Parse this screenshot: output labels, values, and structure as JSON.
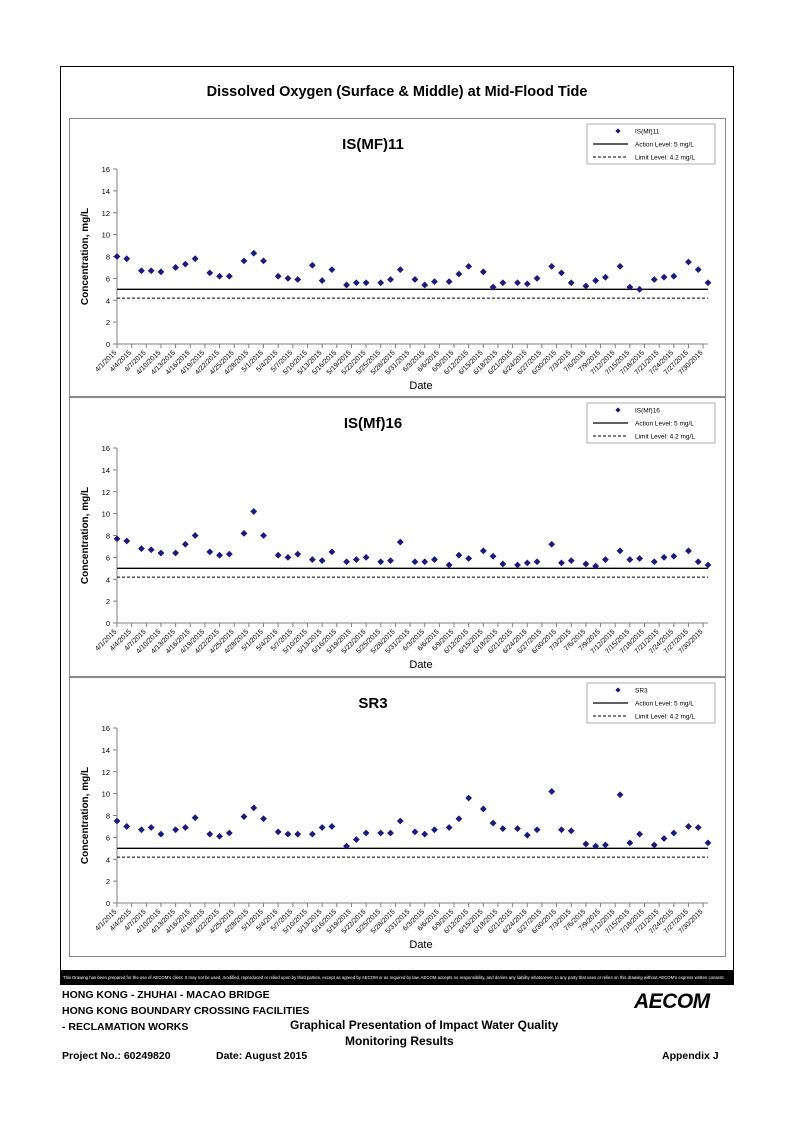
{
  "main_title": "Dissolved Oxygen (Surface & Middle) at Mid-Flood Tide",
  "notice": "This Drawing has been prepared for the use of AECOM's client. It may not be used, modified, reproduced or relied upon by third parties, except as agreed by AECOM or as required by law. AECOM accepts no responsibility, and denies any liability whatsoever, to any party that uses or relies on this drawing without AECOM's express written consent.",
  "footer": {
    "line1": "HONG KONG - ZHUHAI - MACAO BRIDGE",
    "line2": "HONG KONG BOUNDARY CROSSING FACILITIES",
    "line3": "- RECLAMATION WORKS",
    "center1": "Graphical Presentation of Impact Water Quality",
    "center2": "Monitoring Results",
    "project": "Project No.: 60249820",
    "date": "Date: August 2015",
    "appendix": "Appendix J",
    "logo": "AECOM"
  },
  "colors": {
    "marker": "#1a1a7a",
    "axis": "#808080",
    "line": "#000000"
  },
  "chart_data": [
    {
      "type": "scatter",
      "title": "IS(MF)11",
      "xlabel": "Date",
      "ylabel": "Concentration, mg/L",
      "ylim": [
        0,
        16
      ],
      "yticks": [
        0,
        2,
        4,
        6,
        8,
        10,
        12,
        14,
        16
      ],
      "xlim": [
        "4/1/2015",
        "7/31/2015"
      ],
      "xticks": [
        "4/1/2015",
        "4/4/2015",
        "4/7/2015",
        "4/10/2015",
        "4/13/2015",
        "4/16/2015",
        "4/19/2015",
        "4/22/2015",
        "4/25/2015",
        "4/28/2015",
        "5/1/2015",
        "5/4/2015",
        "5/7/2015",
        "5/10/2015",
        "5/13/2015",
        "5/16/2015",
        "5/19/2015",
        "5/22/2015",
        "5/25/2015",
        "5/28/2015",
        "5/31/2015",
        "6/3/2015",
        "6/6/2015",
        "6/9/2015",
        "6/12/2015",
        "6/15/2015",
        "6/18/2015",
        "6/21/2015",
        "6/24/2015",
        "6/27/2015",
        "6/30/2015",
        "7/3/2015",
        "7/6/2015",
        "7/9/2015",
        "7/12/2015",
        "7/15/2015",
        "7/18/2015",
        "7/21/2015",
        "7/24/2015",
        "7/27/2015",
        "7/30/2015"
      ],
      "legend": [
        "IS(Mf)11",
        "Action Level: 5 mg/L",
        "Limit Level: 4.2 mg/L"
      ],
      "legend_position": "top-right",
      "action_level": 5,
      "limit_level": 4.2,
      "series": [
        {
          "name": "IS(Mf)11",
          "x": [
            "4/1/2015",
            "4/3/2015",
            "4/6/2015",
            "4/8/2015",
            "4/10/2015",
            "4/13/2015",
            "4/15/2015",
            "4/17/2015",
            "4/20/2015",
            "4/22/2015",
            "4/24/2015",
            "4/27/2015",
            "4/29/2015",
            "5/1/2015",
            "5/4/2015",
            "5/6/2015",
            "5/8/2015",
            "5/11/2015",
            "5/13/2015",
            "5/15/2015",
            "5/18/2015",
            "5/20/2015",
            "5/22/2015",
            "5/25/2015",
            "5/27/2015",
            "5/29/2015",
            "6/1/2015",
            "6/3/2015",
            "6/5/2015",
            "6/8/2015",
            "6/10/2015",
            "6/12/2015",
            "6/15/2015",
            "6/17/2015",
            "6/19/2015",
            "6/22/2015",
            "6/24/2015",
            "6/26/2015",
            "6/29/2015",
            "7/1/2015",
            "7/3/2015",
            "7/6/2015",
            "7/8/2015",
            "7/10/2015",
            "7/13/2015",
            "7/15/2015",
            "7/17/2015",
            "7/20/2015",
            "7/22/2015",
            "7/24/2015",
            "7/27/2015",
            "7/29/2015",
            "7/31/2015"
          ],
          "values": [
            8.0,
            7.8,
            6.7,
            6.7,
            6.6,
            7.0,
            7.3,
            7.8,
            6.5,
            6.2,
            6.2,
            7.6,
            8.3,
            7.6,
            6.2,
            6.0,
            5.9,
            7.2,
            5.8,
            6.8,
            5.4,
            5.6,
            5.6,
            5.6,
            5.9,
            6.8,
            5.9,
            5.4,
            5.7,
            5.7,
            6.4,
            7.1,
            6.6,
            5.2,
            5.6,
            5.6,
            5.5,
            6.0,
            7.1,
            6.5,
            5.6,
            5.3,
            5.8,
            6.1,
            7.1,
            5.2,
            5.0,
            5.9,
            6.1,
            6.2,
            7.5,
            6.8,
            5.6
          ]
        }
      ]
    },
    {
      "type": "scatter",
      "title": "IS(Mf)16",
      "xlabel": "Date",
      "ylabel": "Concentration, mg/L",
      "ylim": [
        0,
        16
      ],
      "yticks": [
        0,
        2,
        4,
        6,
        8,
        10,
        12,
        14,
        16
      ],
      "xlim": [
        "4/1/2015",
        "7/31/2015"
      ],
      "xticks": [
        "4/1/2015",
        "4/4/2015",
        "4/7/2015",
        "4/10/2015",
        "4/13/2015",
        "4/16/2015",
        "4/19/2015",
        "4/22/2015",
        "4/25/2015",
        "4/28/2015",
        "5/1/2015",
        "5/4/2015",
        "5/7/2015",
        "5/10/2015",
        "5/13/2015",
        "5/16/2015",
        "5/19/2015",
        "5/22/2015",
        "5/25/2015",
        "5/28/2015",
        "5/31/2015",
        "6/3/2015",
        "6/6/2015",
        "6/9/2015",
        "6/12/2015",
        "6/15/2015",
        "6/18/2015",
        "6/21/2015",
        "6/24/2015",
        "6/27/2015",
        "6/30/2015",
        "7/3/2015",
        "7/6/2015",
        "7/9/2015",
        "7/12/2015",
        "7/15/2015",
        "7/18/2015",
        "7/21/2015",
        "7/24/2015",
        "7/27/2015",
        "7/30/2015"
      ],
      "legend": [
        "IS(Mf)16",
        "Action Level: 5 mg/L",
        "Limit Level: 4.2 mg/L"
      ],
      "legend_position": "top-right",
      "action_level": 5,
      "limit_level": 4.2,
      "series": [
        {
          "name": "IS(Mf)16",
          "x": [
            "4/1/2015",
            "4/3/2015",
            "4/6/2015",
            "4/8/2015",
            "4/10/2015",
            "4/13/2015",
            "4/15/2015",
            "4/17/2015",
            "4/20/2015",
            "4/22/2015",
            "4/24/2015",
            "4/27/2015",
            "4/29/2015",
            "5/1/2015",
            "5/4/2015",
            "5/6/2015",
            "5/8/2015",
            "5/11/2015",
            "5/13/2015",
            "5/15/2015",
            "5/18/2015",
            "5/20/2015",
            "5/22/2015",
            "5/25/2015",
            "5/27/2015",
            "5/29/2015",
            "6/1/2015",
            "6/3/2015",
            "6/5/2015",
            "6/8/2015",
            "6/10/2015",
            "6/12/2015",
            "6/15/2015",
            "6/17/2015",
            "6/19/2015",
            "6/22/2015",
            "6/24/2015",
            "6/26/2015",
            "6/29/2015",
            "7/1/2015",
            "7/3/2015",
            "7/6/2015",
            "7/8/2015",
            "7/10/2015",
            "7/13/2015",
            "7/15/2015",
            "7/17/2015",
            "7/20/2015",
            "7/22/2015",
            "7/24/2015",
            "7/27/2015",
            "7/29/2015",
            "7/31/2015"
          ],
          "values": [
            7.7,
            7.5,
            6.8,
            6.7,
            6.4,
            6.4,
            7.2,
            8.0,
            6.5,
            6.2,
            6.3,
            8.2,
            10.2,
            8.0,
            6.2,
            6.0,
            6.3,
            5.8,
            5.7,
            6.5,
            5.6,
            5.8,
            6.0,
            5.6,
            5.7,
            7.4,
            5.6,
            5.6,
            5.8,
            5.3,
            6.2,
            5.9,
            6.6,
            6.1,
            5.4,
            5.3,
            5.5,
            5.6,
            7.2,
            5.5,
            5.7,
            5.4,
            5.2,
            5.8,
            6.6,
            5.8,
            5.9,
            5.6,
            6.0,
            6.1,
            6.6,
            5.6,
            5.3
          ]
        }
      ]
    },
    {
      "type": "scatter",
      "title": "SR3",
      "xlabel": "Date",
      "ylabel": "Concentration, mg/L",
      "ylim": [
        0,
        16
      ],
      "yticks": [
        0,
        2,
        4,
        6,
        8,
        10,
        12,
        14,
        16
      ],
      "xlim": [
        "4/1/2015",
        "7/31/2015"
      ],
      "xticks": [
        "4/1/2015",
        "4/4/2015",
        "4/7/2015",
        "4/10/2015",
        "4/13/2015",
        "4/16/2015",
        "4/19/2015",
        "4/22/2015",
        "4/25/2015",
        "4/28/2015",
        "5/1/2015",
        "5/4/2015",
        "5/7/2015",
        "5/10/2015",
        "5/13/2015",
        "5/16/2015",
        "5/19/2015",
        "5/22/2015",
        "5/25/2015",
        "5/28/2015",
        "5/31/2015",
        "6/3/2015",
        "6/6/2015",
        "6/9/2015",
        "6/12/2015",
        "6/15/2015",
        "6/18/2015",
        "6/21/2015",
        "6/24/2015",
        "6/27/2015",
        "6/30/2015",
        "7/3/2015",
        "7/6/2015",
        "7/9/2015",
        "7/12/2015",
        "7/15/2015",
        "7/18/2015",
        "7/21/2015",
        "7/24/2015",
        "7/27/2015",
        "7/30/2015"
      ],
      "legend": [
        "SR3",
        "Action Level: 5 mg/L",
        "Limit Level: 4.2 mg/L"
      ],
      "legend_position": "top-right",
      "action_level": 5,
      "limit_level": 4.2,
      "series": [
        {
          "name": "SR3",
          "x": [
            "4/1/2015",
            "4/3/2015",
            "4/6/2015",
            "4/8/2015",
            "4/10/2015",
            "4/13/2015",
            "4/15/2015",
            "4/17/2015",
            "4/20/2015",
            "4/22/2015",
            "4/24/2015",
            "4/27/2015",
            "4/29/2015",
            "5/1/2015",
            "5/4/2015",
            "5/6/2015",
            "5/8/2015",
            "5/11/2015",
            "5/13/2015",
            "5/15/2015",
            "5/18/2015",
            "5/20/2015",
            "5/22/2015",
            "5/25/2015",
            "5/27/2015",
            "5/29/2015",
            "6/1/2015",
            "6/3/2015",
            "6/5/2015",
            "6/8/2015",
            "6/10/2015",
            "6/12/2015",
            "6/15/2015",
            "6/17/2015",
            "6/19/2015",
            "6/22/2015",
            "6/24/2015",
            "6/26/2015",
            "6/29/2015",
            "7/1/2015",
            "7/3/2015",
            "7/6/2015",
            "7/8/2015",
            "7/10/2015",
            "7/13/2015",
            "7/15/2015",
            "7/17/2015",
            "7/20/2015",
            "7/22/2015",
            "7/24/2015",
            "7/27/2015",
            "7/29/2015",
            "7/31/2015"
          ],
          "values": [
            7.5,
            7.0,
            6.7,
            6.9,
            6.3,
            6.7,
            6.9,
            7.8,
            6.3,
            6.1,
            6.4,
            7.9,
            8.7,
            7.7,
            6.5,
            6.3,
            6.3,
            6.3,
            6.9,
            7.0,
            5.2,
            5.8,
            6.4,
            6.4,
            6.4,
            7.5,
            6.5,
            6.3,
            6.7,
            6.9,
            7.7,
            9.6,
            8.6,
            7.3,
            6.8,
            6.8,
            6.2,
            6.7,
            10.2,
            6.7,
            6.6,
            5.4,
            5.2,
            5.3,
            9.9,
            5.5,
            6.3,
            5.3,
            5.9,
            6.4,
            7.0,
            6.9,
            5.5
          ]
        }
      ]
    }
  ]
}
